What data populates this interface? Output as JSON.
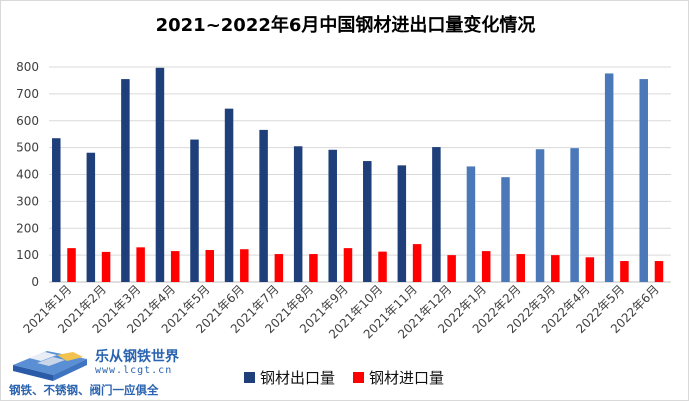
{
  "chart_data": {
    "type": "bar",
    "title": "2021~2022年6月中国钢材进出口量变化情况",
    "xlabel": "",
    "ylabel": "",
    "ylim": [
      0,
      800
    ],
    "yticks": [
      0,
      100,
      200,
      300,
      400,
      500,
      600,
      700,
      800
    ],
    "grid": true,
    "legend_position": "bottom",
    "categories": [
      "2021年1月",
      "2021年2月",
      "2021年3月",
      "2021年4月",
      "2021年5月",
      "2021年6月",
      "2021年7月",
      "2021年8月",
      "2021年9月",
      "2021年10月",
      "2021年11月",
      "2021年12月",
      "2022年1月",
      "2022年2月",
      "2022年3月",
      "2022年4月",
      "2022年5月",
      "2022年6月"
    ],
    "series": [
      {
        "name": "钢材出口量",
        "color": "#1f3f7a",
        "color_2022": "#4a78b8",
        "values": [
          535,
          481,
          755,
          797,
          530,
          645,
          566,
          505,
          492,
          450,
          434,
          502,
          430,
          390,
          494,
          498,
          776,
          755
        ]
      },
      {
        "name": "钢材进口量",
        "color": "#ff0000",
        "values": [
          126,
          112,
          129,
          115,
          119,
          122,
          104,
          104,
          126,
          113,
          141,
          100,
          115,
          104,
          100,
          92,
          78,
          78
        ]
      }
    ]
  },
  "logo": {
    "name": "乐从钢铁世界",
    "url": "www.lcgt.cn",
    "slogan": "钢铁、不锈钢、阀门一应俱全"
  }
}
